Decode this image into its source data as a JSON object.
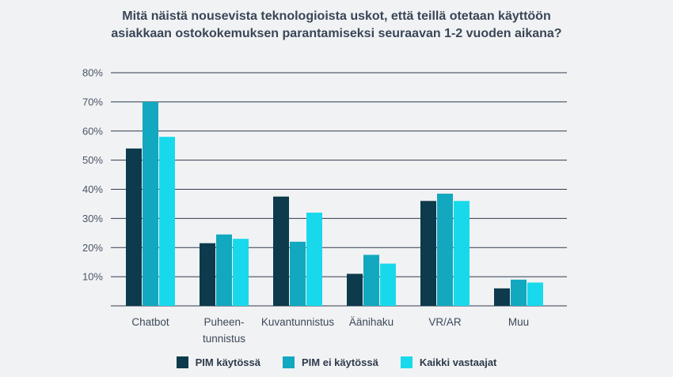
{
  "chart_data": {
    "type": "bar",
    "title_lines": [
      "Mitä näistä nousevista teknologioista uskot, että teillä otetaan käyttöön",
      "asiakkaan ostokokemuksen parantamiseksi seuraavan 1-2 vuoden aikana?"
    ],
    "categories": [
      [
        "Chatbot"
      ],
      [
        "Puheen-",
        "tunnistus"
      ],
      [
        "Kuvantunnistus"
      ],
      [
        "Äänihaku"
      ],
      [
        "VR/AR"
      ],
      [
        "Muu"
      ]
    ],
    "series": [
      {
        "name": "PIM käytössä",
        "color": "#0d3a4c",
        "values": [
          54,
          21.5,
          37.5,
          11,
          36,
          6
        ]
      },
      {
        "name": "PIM ei käytössä",
        "color": "#12a8bf",
        "values": [
          70,
          24.5,
          22,
          17.5,
          38.5,
          9
        ]
      },
      {
        "name": "Kaikki vastaajat",
        "color": "#18d9ec",
        "values": [
          58,
          23,
          32,
          14.5,
          36,
          8
        ]
      }
    ],
    "yticks": [
      "80%",
      "70%",
      "60%",
      "50%",
      "40%",
      "30%",
      "20%",
      "10%"
    ],
    "ytick_values": [
      80,
      70,
      60,
      50,
      40,
      30,
      20,
      10
    ],
    "ylim": [
      0,
      80
    ],
    "grid": true,
    "legend_position": "bottom"
  }
}
